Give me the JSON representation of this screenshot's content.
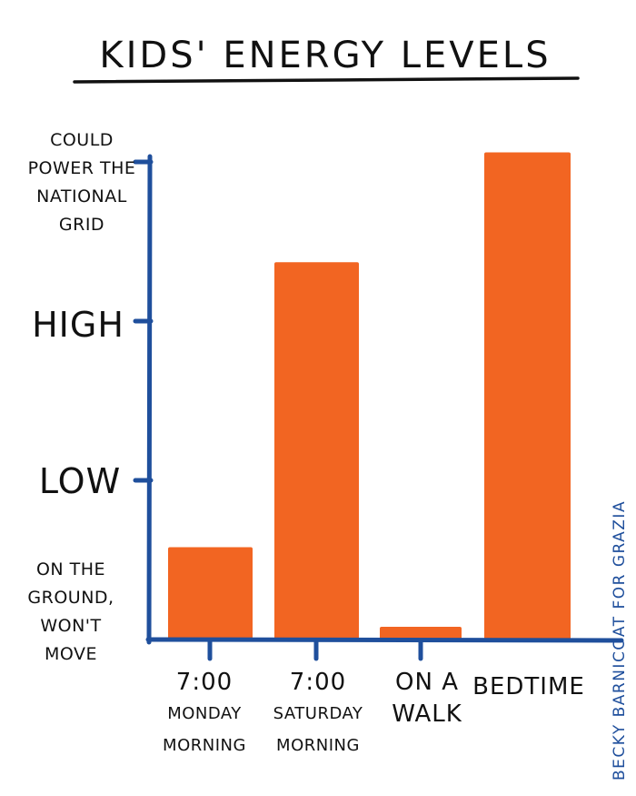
{
  "chart_data": {
    "type": "bar",
    "title": "KIDS' ENERGY LEVELS",
    "categories": [
      [
        "7:00",
        "MONDAY",
        "MORNING"
      ],
      [
        "7:00",
        "SATURDAY",
        "MORNING"
      ],
      [
        "ON A",
        "WALK"
      ],
      [
        "BEDTIME"
      ]
    ],
    "values": [
      0.58,
      2.37,
      0.08,
      3.06
    ],
    "ylim": [
      0,
      3
    ],
    "y_ticks": [
      {
        "value": 3,
        "lines": [
          "COULD",
          "POWER THE",
          "NATIONAL",
          "GRID"
        ]
      },
      {
        "value": 2,
        "lines": [
          "HIGH"
        ]
      },
      {
        "value": 1,
        "lines": [
          "LOW"
        ]
      },
      {
        "value": 0,
        "lines": [
          "ON THE",
          "GROUND,",
          "WON'T",
          "MOVE"
        ]
      }
    ],
    "grid": false,
    "legend": "none"
  },
  "credit": "BECKY BARNICOAT FOR GRAZIA",
  "colors": {
    "bar": "#f26522",
    "axis": "#1f4f9c",
    "text": "#111111",
    "credit": "#1f4f9c"
  }
}
